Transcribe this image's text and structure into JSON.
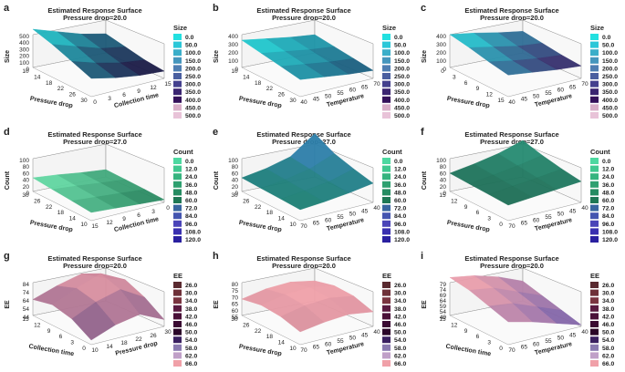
{
  "figure": {
    "panels": [
      {
        "letter": "a",
        "title": "Estimated Response Surface",
        "subtitle": "Pressure drop=20.0",
        "zlabel": "Size",
        "xlabel": "Pressure drop",
        "ylabel": "Collection time",
        "zticks": [
          "500",
          "400",
          "300",
          "200",
          "100",
          "0"
        ],
        "xticks": [
          "10",
          "14",
          "18",
          "22",
          "26",
          "30"
        ],
        "yticks": [
          "0",
          "3",
          "6",
          "9",
          "12",
          "15"
        ],
        "legend": {
          "title": "Size",
          "items": [
            "0.0",
            "50.0",
            "100.0",
            "150.0",
            "200.0",
            "250.0",
            "300.0",
            "350.0",
            "400.0",
            "450.0",
            "500.0"
          ],
          "colors": [
            "#22e0e0",
            "#2bc7d8",
            "#3aaec9",
            "#4596bd",
            "#4f7eb2",
            "#4a5fa0",
            "#44408e",
            "#3a2470",
            "#34105a",
            "#d9aec8",
            "#e8c3d8"
          ]
        },
        "surface": {
          "low": "#1a0a3a",
          "high": "#22e0e0",
          "z": [
            [
              420,
              340,
              260,
              210
            ],
            [
              360,
              280,
              200,
              160
            ],
            [
              280,
              200,
              140,
              110
            ],
            [
              200,
              140,
              100,
              80
            ]
          ]
        }
      },
      {
        "letter": "b",
        "title": "Estimated Response Surface",
        "subtitle": "Pressure drop=20.0",
        "zlabel": "Size",
        "xlabel": "Pressure drop",
        "ylabel": "Temperature",
        "zticks": [
          "400",
          "300",
          "200",
          "100",
          "0"
        ],
        "xticks": [
          "10",
          "14",
          "18",
          "22",
          "26",
          "30"
        ],
        "yticks": [
          "40",
          "45",
          "50",
          "55",
          "60",
          "65",
          "70"
        ],
        "legend": {
          "title": "Size",
          "items": [
            "0.0",
            "50.0",
            "100.0",
            "150.0",
            "200.0",
            "250.0",
            "300.0",
            "350.0",
            "400.0",
            "450.0",
            "500.0"
          ],
          "colors": [
            "#22e0e0",
            "#2bc7d8",
            "#3aaec9",
            "#4596bd",
            "#4f7eb2",
            "#4a5fa0",
            "#44408e",
            "#3a2470",
            "#34105a",
            "#d9aec8",
            "#e8c3d8"
          ]
        },
        "surface": {
          "low": "#1a4a70",
          "high": "#22e0e0",
          "z": [
            [
              240,
              210,
              180,
              160
            ],
            [
              210,
              180,
              150,
              130
            ],
            [
              180,
              150,
              120,
              100
            ],
            [
              150,
              120,
              90,
              70
            ]
          ]
        }
      },
      {
        "letter": "c",
        "title": "Estimated Response Surface",
        "subtitle": "Pressure drop=20.0",
        "zlabel": "Size",
        "xlabel": "Pressure drop",
        "ylabel": "Temperature",
        "zticks": [
          "400",
          "300",
          "200",
          "100",
          "0"
        ],
        "xticks": [
          "0",
          "3",
          "6",
          "9",
          "12",
          "15"
        ],
        "yticks": [
          "40",
          "45",
          "50",
          "55",
          "60",
          "65",
          "70"
        ],
        "legend": {
          "title": "Size",
          "items": [
            "0.0",
            "50.0",
            "100.0",
            "150.0",
            "200.0",
            "250.0",
            "300.0",
            "350.0",
            "400.0",
            "450.0",
            "500.0"
          ],
          "colors": [
            "#22e0e0",
            "#2bc7d8",
            "#3aaec9",
            "#4596bd",
            "#4f7eb2",
            "#4a5fa0",
            "#44408e",
            "#3a2470",
            "#34105a",
            "#d9aec8",
            "#e8c3d8"
          ]
        },
        "surface": {
          "low": "#3a1a60",
          "high": "#22e0e0",
          "z": [
            [
              290,
              260,
              220,
              190
            ],
            [
              260,
              220,
              180,
              160
            ],
            [
              220,
              180,
              150,
              130
            ],
            [
              190,
              160,
              130,
              110
            ]
          ]
        }
      },
      {
        "letter": "d",
        "title": "Estimated Response Surface",
        "subtitle": "Pressure drop=27.0",
        "zlabel": "Count",
        "xlabel": "Pressure drop",
        "ylabel": "Collection time",
        "zticks": [
          "100",
          "80",
          "60",
          "40",
          "20",
          "0"
        ],
        "xticks": [
          "30",
          "26",
          "22",
          "18",
          "14",
          "10"
        ],
        "yticks": [
          "15",
          "12",
          "9",
          "6",
          "3",
          "0"
        ],
        "legend": {
          "title": "Count",
          "items": [
            "0.0",
            "12.0",
            "24.0",
            "36.0",
            "48.0",
            "60.0",
            "72.0",
            "84.0",
            "96.0",
            "108.0",
            "120.0"
          ],
          "colors": [
            "#4dd8a0",
            "#40c890",
            "#36b47f",
            "#2ea070",
            "#268c62",
            "#1f7855",
            "#3a66a0",
            "#4455b0",
            "#4a44b8",
            "#3a30b0",
            "#2a20a0"
          ]
        },
        "surface": {
          "low": "#1f7a55",
          "high": "#6ee8b0",
          "z": [
            [
              30,
              26,
              20,
              16
            ],
            [
              26,
              22,
              17,
              13
            ],
            [
              22,
              18,
              14,
              10
            ],
            [
              18,
              14,
              10,
              6
            ]
          ]
        }
      },
      {
        "letter": "e",
        "title": "Estimated Response Surface",
        "subtitle": "Pressure drop=27.0",
        "zlabel": "Count",
        "xlabel": "Pressure drop",
        "ylabel": "Temperature",
        "zticks": [
          "100",
          "80",
          "60",
          "40",
          "20",
          "0"
        ],
        "xticks": [
          "30",
          "26",
          "22",
          "18",
          "14",
          "10"
        ],
        "yticks": [
          "70",
          "65",
          "60",
          "55",
          "50",
          "45",
          "40"
        ],
        "legend": {
          "title": "Count",
          "items": [
            "0.0",
            "12.0",
            "24.0",
            "36.0",
            "48.0",
            "60.0",
            "72.0",
            "84.0",
            "96.0",
            "108.0",
            "120.0"
          ],
          "colors": [
            "#4dd8a0",
            "#40c890",
            "#36b47f",
            "#2ea070",
            "#268c62",
            "#1f7855",
            "#3a66a0",
            "#4455b0",
            "#4a44b8",
            "#3a30b0",
            "#2a20a0"
          ]
        },
        "surface": {
          "low": "#1a7f70",
          "high": "#3a7fd0",
          "z": [
            [
              30,
              40,
              55,
              95
            ],
            [
              28,
              36,
              48,
              70
            ],
            [
              26,
              32,
              40,
              55
            ],
            [
              24,
              28,
              34,
              42
            ]
          ]
        }
      },
      {
        "letter": "f",
        "title": "Estimated Response Surface",
        "subtitle": "Pressure drop=27.0",
        "zlabel": "Count",
        "xlabel": "Pressure drop",
        "ylabel": "Temperature",
        "zticks": [
          "100",
          "80",
          "60",
          "40",
          "20",
          "0"
        ],
        "xticks": [
          "15",
          "12",
          "9",
          "6",
          "3",
          "0"
        ],
        "yticks": [
          "70",
          "65",
          "60",
          "55",
          "50",
          "45",
          "40"
        ],
        "legend": {
          "title": "Count",
          "items": [
            "0.0",
            "12.0",
            "24.0",
            "36.0",
            "48.0",
            "60.0",
            "72.0",
            "84.0",
            "96.0",
            "108.0",
            "120.0"
          ],
          "colors": [
            "#4dd8a0",
            "#40c890",
            "#36b47f",
            "#2ea070",
            "#268c62",
            "#1f7855",
            "#3a66a0",
            "#4455b0",
            "#4a44b8",
            "#3a30b0",
            "#2a20a0"
          ]
        },
        "surface": {
          "low": "#1c6a52",
          "high": "#2a9a80",
          "z": [
            [
              40,
              50,
              62,
              80
            ],
            [
              38,
              46,
              55,
              66
            ],
            [
              36,
              42,
              48,
              55
            ],
            [
              34,
              38,
              42,
              46
            ]
          ]
        }
      },
      {
        "letter": "g",
        "title": "Estimated Response Surface",
        "subtitle": "Pressure drop=20.0",
        "zlabel": "EE",
        "xlabel": "Collection time",
        "ylabel": "Pressure drop",
        "zticks": [
          "84",
          "74",
          "64",
          "54",
          "44"
        ],
        "xticks": [
          "15",
          "12",
          "9",
          "6",
          "3",
          "0"
        ],
        "yticks": [
          "10",
          "14",
          "18",
          "22",
          "26",
          "30"
        ],
        "legend": {
          "title": "EE",
          "items": [
            "26.0",
            "30.0",
            "34.0",
            "38.0",
            "42.0",
            "46.0",
            "50.0",
            "54.0",
            "58.0",
            "62.0",
            "66.0"
          ],
          "colors": [
            "#5a2a30",
            "#6e3038",
            "#7a3440",
            "#5a1a40",
            "#4a1038",
            "#3a0a32",
            "#2a0628",
            "#3a2060",
            "#8a7ab0",
            "#c0a0c8",
            "#f0a0a8"
          ]
        },
        "surface": {
          "low": "#6a4a80",
          "high": "#f4a0a8",
          "z": [
            [
              58,
              66,
              72,
              64
            ],
            [
              62,
              72,
              80,
              70
            ],
            [
              58,
              68,
              74,
              62
            ],
            [
              48,
              56,
              60,
              50
            ]
          ]
        }
      },
      {
        "letter": "h",
        "title": "Estimated Response Surface",
        "subtitle": "Pressure drop=20.0",
        "zlabel": "EE",
        "xlabel": "Pressure drop",
        "ylabel": "Temperature",
        "zticks": [
          "80",
          "75",
          "70",
          "65",
          "60",
          "55"
        ],
        "xticks": [
          "30",
          "26",
          "22",
          "18",
          "14",
          "10"
        ],
        "yticks": [
          "70",
          "65",
          "60",
          "55",
          "50",
          "45",
          "40"
        ],
        "legend": {
          "title": "EE",
          "items": [
            "26.0",
            "30.0",
            "34.0",
            "38.0",
            "42.0",
            "46.0",
            "50.0",
            "54.0",
            "58.0",
            "62.0",
            "66.0"
          ],
          "colors": [
            "#5a2a30",
            "#6e3038",
            "#7a3440",
            "#5a1a40",
            "#4a1038",
            "#3a0a32",
            "#2a0628",
            "#3a2060",
            "#8a7ab0",
            "#c0a0c8",
            "#f0a0a8"
          ]
        },
        "surface": {
          "low": "#d08898",
          "high": "#f4a4ac",
          "z": [
            [
              64,
              67,
              68,
              66
            ],
            [
              66,
              69,
              70,
              68
            ],
            [
              65,
              68,
              69,
              67
            ],
            [
              62,
              64,
              65,
              63
            ]
          ]
        }
      },
      {
        "letter": "i",
        "title": "Estimated Response Surface",
        "subtitle": "Pressure drop=20.0",
        "zlabel": "EE",
        "xlabel": "Collection time",
        "ylabel": "Temperature",
        "zticks": [
          "79",
          "74",
          "69",
          "64",
          "59",
          "54",
          "49"
        ],
        "xticks": [
          "15",
          "12",
          "9",
          "6",
          "3",
          "0"
        ],
        "yticks": [
          "70",
          "65",
          "60",
          "55",
          "50",
          "45",
          "40"
        ],
        "legend": {
          "title": "EE",
          "items": [
            "26.0",
            "30.0",
            "34.0",
            "38.0",
            "42.0",
            "46.0",
            "50.0",
            "54.0",
            "58.0",
            "62.0",
            "66.0"
          ],
          "colors": [
            "#5a2a30",
            "#6e3038",
            "#7a3440",
            "#5a1a40",
            "#4a1038",
            "#3a0a32",
            "#2a0628",
            "#3a2060",
            "#8a7ab0",
            "#c0a0c8",
            "#f0a0a8"
          ]
        },
        "surface": {
          "low": "#6a58a8",
          "high": "#f4a4ac",
          "z": [
            [
              74,
              72,
              68,
              62
            ],
            [
              72,
              70,
              64,
              58
            ],
            [
              68,
              66,
              60,
              54
            ],
            [
              64,
              60,
              55,
              50
            ]
          ]
        }
      }
    ]
  },
  "chart_data": [
    {
      "type": "surface",
      "panel": "a",
      "title": "Estimated Response Surface",
      "subtitle": "Pressure drop=20.0",
      "zlabel": "Size",
      "xlabel": "Pressure drop",
      "ylabel": "Collection time",
      "zlim": [
        0,
        500
      ],
      "x": [
        10,
        30
      ],
      "y": [
        0,
        15
      ]
    },
    {
      "type": "surface",
      "panel": "b",
      "title": "Estimated Response Surface",
      "subtitle": "Pressure drop=20.0",
      "zlabel": "Size",
      "xlabel": "Pressure drop",
      "ylabel": "Temperature",
      "zlim": [
        0,
        400
      ],
      "x": [
        10,
        30
      ],
      "y": [
        40,
        70
      ]
    },
    {
      "type": "surface",
      "panel": "c",
      "title": "Estimated Response Surface",
      "subtitle": "Pressure drop=20.0",
      "zlabel": "Size",
      "xlabel": "Pressure drop",
      "ylabel": "Temperature",
      "zlim": [
        0,
        400
      ],
      "x": [
        0,
        15
      ],
      "y": [
        40,
        70
      ]
    },
    {
      "type": "surface",
      "panel": "d",
      "title": "Estimated Response Surface",
      "subtitle": "Pressure drop=27.0",
      "zlabel": "Count",
      "xlabel": "Pressure drop",
      "ylabel": "Collection time",
      "zlim": [
        0,
        100
      ],
      "x": [
        10,
        30
      ],
      "y": [
        0,
        15
      ]
    },
    {
      "type": "surface",
      "panel": "e",
      "title": "Estimated Response Surface",
      "subtitle": "Pressure drop=27.0",
      "zlabel": "Count",
      "xlabel": "Pressure drop",
      "ylabel": "Temperature",
      "zlim": [
        0,
        100
      ],
      "x": [
        10,
        30
      ],
      "y": [
        40,
        70
      ]
    },
    {
      "type": "surface",
      "panel": "f",
      "title": "Estimated Response Surface",
      "subtitle": "Pressure drop=27.0",
      "zlabel": "Count",
      "xlabel": "Pressure drop",
      "ylabel": "Temperature",
      "zlim": [
        0,
        100
      ],
      "x": [
        0,
        15
      ],
      "y": [
        40,
        70
      ]
    },
    {
      "type": "surface",
      "panel": "g",
      "title": "Estimated Response Surface",
      "subtitle": "Pressure drop=20.0",
      "zlabel": "EE",
      "xlabel": "Collection time",
      "ylabel": "Pressure drop",
      "zlim": [
        44,
        84
      ],
      "x": [
        0,
        15
      ],
      "y": [
        10,
        30
      ]
    },
    {
      "type": "surface",
      "panel": "h",
      "title": "Estimated Response Surface",
      "subtitle": "Pressure drop=20.0",
      "zlabel": "EE",
      "xlabel": "Pressure drop",
      "ylabel": "Temperature",
      "zlim": [
        55,
        80
      ],
      "x": [
        10,
        30
      ],
      "y": [
        40,
        70
      ]
    },
    {
      "type": "surface",
      "panel": "i",
      "title": "Estimated Response Surface",
      "subtitle": "Pressure drop=20.0",
      "zlabel": "EE",
      "xlabel": "Collection time",
      "ylabel": "Temperature",
      "zlim": [
        49,
        79
      ],
      "x": [
        0,
        15
      ],
      "y": [
        40,
        70
      ]
    }
  ]
}
